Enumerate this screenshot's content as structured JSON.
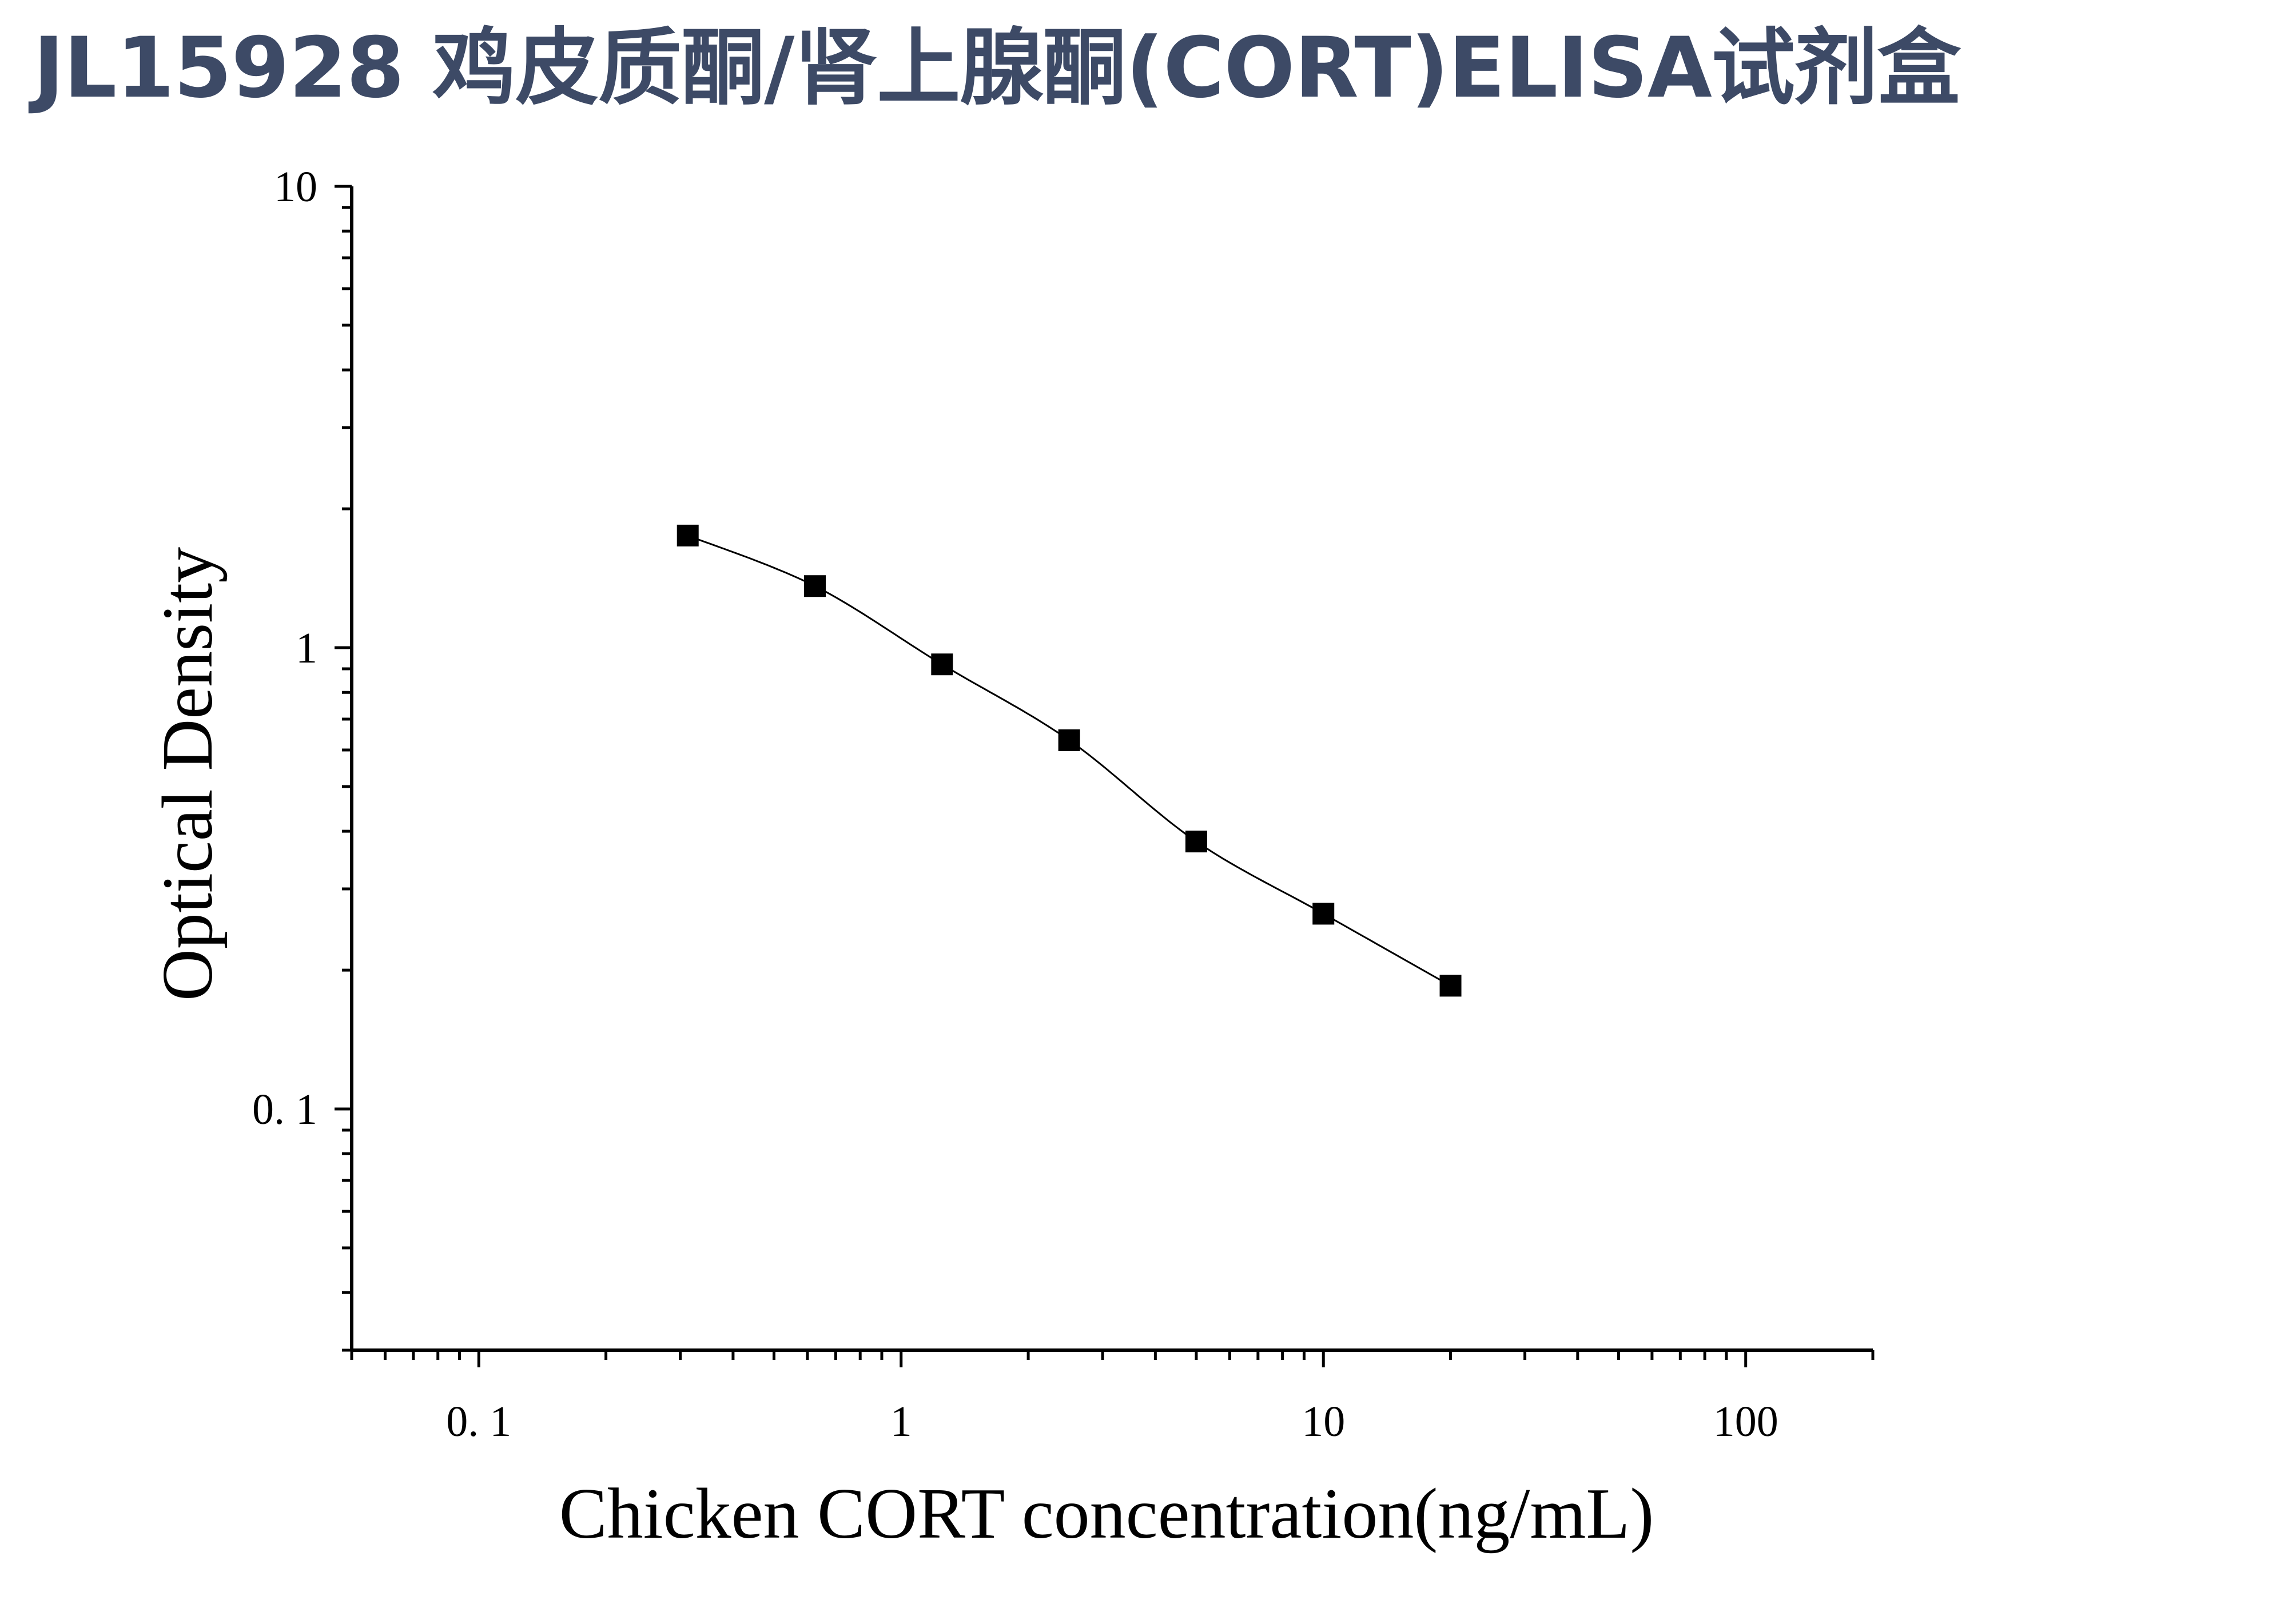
{
  "page": {
    "title": "JL15928 鸡皮质酮/肾上腺酮(CORT)ELISA试剂盒",
    "title_color": "#3d4a66"
  },
  "chart_data": {
    "type": "scatter",
    "title": "",
    "xlabel": "Chicken CORT concentration(ng/mL)",
    "ylabel": "Optical Density",
    "x_scale": "log",
    "y_scale": "log",
    "xlim": [
      0.05,
      200
    ],
    "ylim": [
      0.03,
      10
    ],
    "x_ticks": [
      {
        "value": 0.1,
        "label": "0. 1"
      },
      {
        "value": 1,
        "label": "1"
      },
      {
        "value": 10,
        "label": "10"
      },
      {
        "value": 100,
        "label": "100"
      }
    ],
    "y_ticks": [
      {
        "value": 0.1,
        "label": "0. 1"
      },
      {
        "value": 1,
        "label": "1"
      },
      {
        "value": 10,
        "label": "10"
      }
    ],
    "grid": false,
    "legend": "none",
    "marker": "square",
    "marker_color": "#000000",
    "line_color": "#000000",
    "fit_curve": true,
    "series": [
      {
        "x": [
          0.3125,
          0.625,
          1.25,
          2.5,
          5,
          10,
          20
        ],
        "y": [
          1.75,
          1.36,
          0.92,
          0.63,
          0.38,
          0.265,
          0.185
        ]
      }
    ]
  }
}
